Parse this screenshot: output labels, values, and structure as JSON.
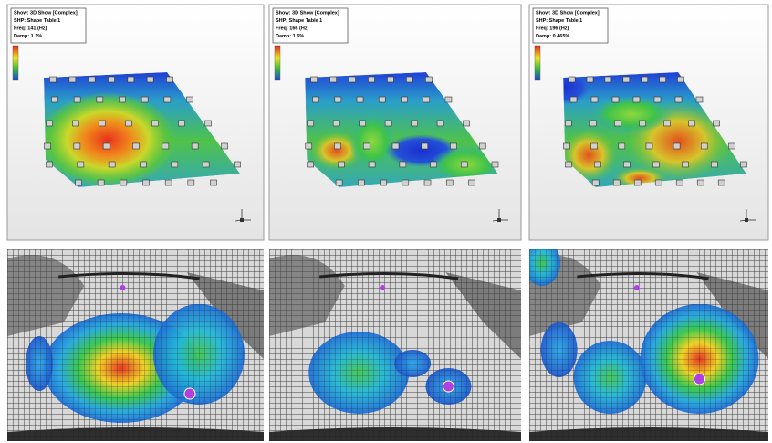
{
  "panels": [
    {
      "info": [
        "Show: 3D Show [Complex]",
        "SHP: Shape Table 1",
        "Freq: 141 (Hz)",
        "Damp: 1.1%"
      ]
    },
    {
      "info": [
        "Show: 3D Show [Complex]",
        "SHP: Shape Table 1",
        "Freq: 166 (Hz)",
        "Damp: 1.6%"
      ]
    },
    {
      "info": [
        "Show: 3D Show [Complex]",
        "SHP: Shape Table 1",
        "Freq: 196 (Hz)",
        "Damp: 0.465%"
      ]
    }
  ]
}
